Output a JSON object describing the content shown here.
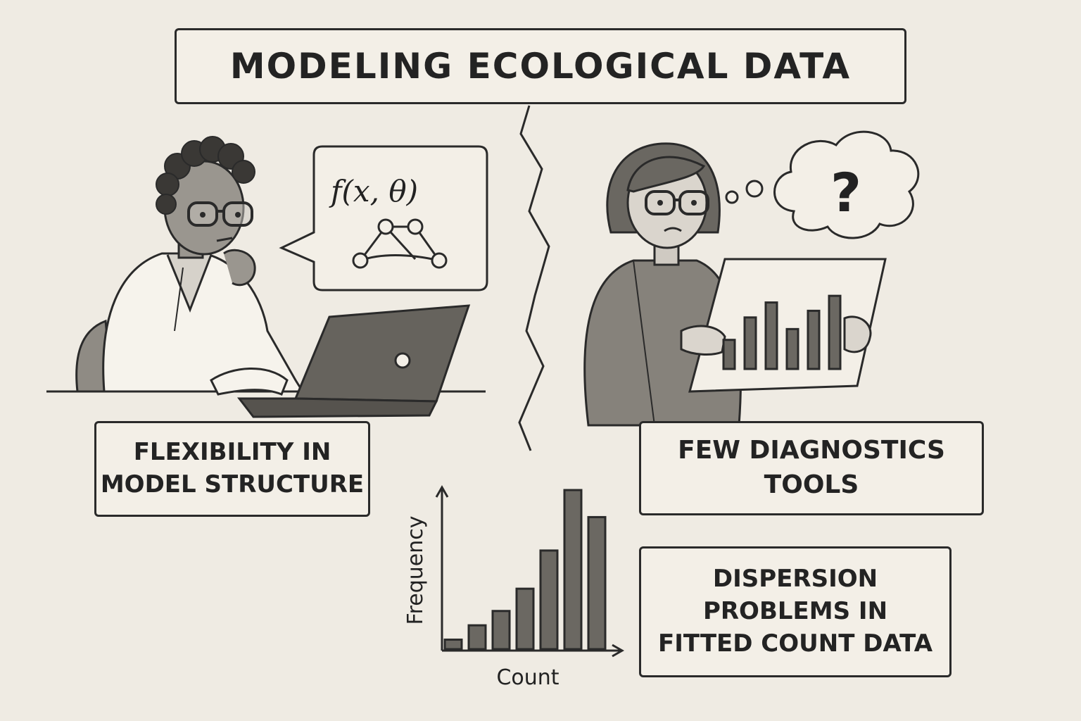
{
  "title": "MODELING ECOLOGICAL DATA",
  "labels": {
    "flexibility": [
      "FLEXIBILITY IN",
      "MODEL STRUCTURE"
    ],
    "diagnostics": [
      "FEW DIAGNOSTICS",
      "TOOLS"
    ],
    "dispersion": [
      "DISPERSION",
      "PROBLEMS IN",
      "FITTED COUNT DATA"
    ]
  },
  "formula": "f(x, θ)",
  "thought_symbol": "?",
  "histogram": {
    "xlabel": "Count",
    "ylabel": "Frequency",
    "bar_heights": [
      0.06,
      0.15,
      0.24,
      0.38,
      0.62,
      1.0,
      0.83
    ]
  },
  "colors": {
    "background": "#efebe3",
    "ink": "#2a2a2a",
    "bar_fill": "#6b6862"
  }
}
